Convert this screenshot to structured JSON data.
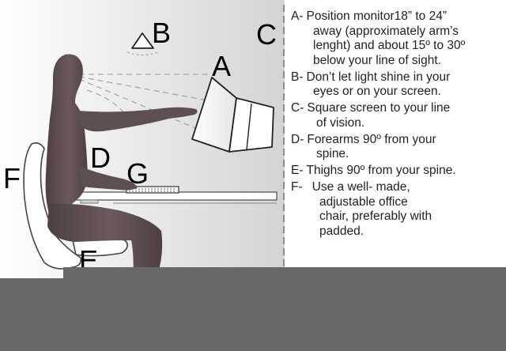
{
  "diagram": {
    "labels": {
      "a": "A",
      "b": "B",
      "c": "C",
      "d": "D",
      "e": "E",
      "f": "F",
      "g": "G"
    },
    "legend": [
      {
        "key": "A-",
        "lines": [
          "Position monitor18” to 24”",
          "away (approximately arm’s",
          "lenght) and about 15º to 30º",
          "below your line of sight."
        ]
      },
      {
        "key": "B-",
        "lines": [
          "Don’t let light shine in your",
          "eyes or on your screen."
        ]
      },
      {
        "key": "C-",
        "lines": [
          "Square screen to your line",
          "of vision."
        ]
      },
      {
        "key": "D-",
        "lines": [
          "Forearms 90º from your",
          "spine."
        ]
      },
      {
        "key": "E-",
        "lines": [
          "Thighs 90º from your spine."
        ]
      },
      {
        "key": "F-",
        "lines": [
          "Use a well- made,",
          "adjustable office",
          "chair, preferably with",
          "padded."
        ]
      }
    ],
    "colors": {
      "figure": "#5a4a4c",
      "bar": "#686868",
      "gradient_start": "#ffffff",
      "gradient_end": "#d2d2d2"
    }
  }
}
